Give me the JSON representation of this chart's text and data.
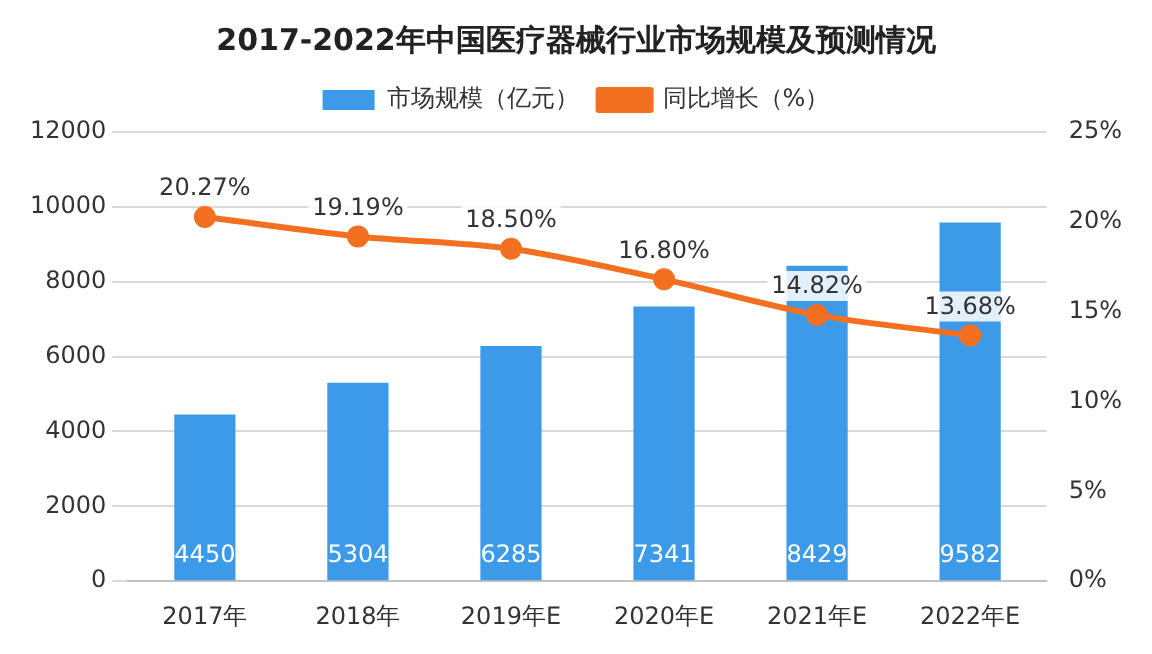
{
  "chart_data": {
    "type": "bar",
    "title": "2017-2022年中国医疗器械行业市场规模及预测情况",
    "categories": [
      "2017年",
      "2018年",
      "2019年E",
      "2020年E",
      "2021年E",
      "2022年E"
    ],
    "series": [
      {
        "name": "市场规模（亿元）",
        "color": "#3d9ae8",
        "values": [
          4450,
          5304,
          6285,
          7341,
          8429,
          9582
        ],
        "value_labels": [
          "4450",
          "5304",
          "6285",
          "7341",
          "8429",
          "9582"
        ]
      },
      {
        "name": "同比增长（%）",
        "type": "line",
        "axis": "y2",
        "color": "#f37021",
        "values": [
          20.27,
          19.19,
          18.5,
          16.8,
          14.82,
          13.68
        ],
        "value_labels": [
          "20.27%",
          "19.19%",
          "18.50%",
          "16.80%",
          "14.82%",
          "13.68%"
        ]
      }
    ],
    "ylim": [
      0,
      12000
    ],
    "yticks": [
      0,
      2000,
      4000,
      6000,
      8000,
      10000,
      12000
    ],
    "y2lim": [
      0,
      25
    ],
    "y2ticks": [
      {
        "value": 0,
        "label": "0%"
      },
      {
        "value": 5,
        "label": "5%"
      },
      {
        "value": 10,
        "label": "10%"
      },
      {
        "value": 15,
        "label": "15%"
      },
      {
        "value": 20,
        "label": "20%"
      },
      {
        "value": 25,
        "label": "25%"
      }
    ],
    "grid": "y",
    "legend": "top",
    "marker": "circle",
    "line_style": "solid"
  }
}
